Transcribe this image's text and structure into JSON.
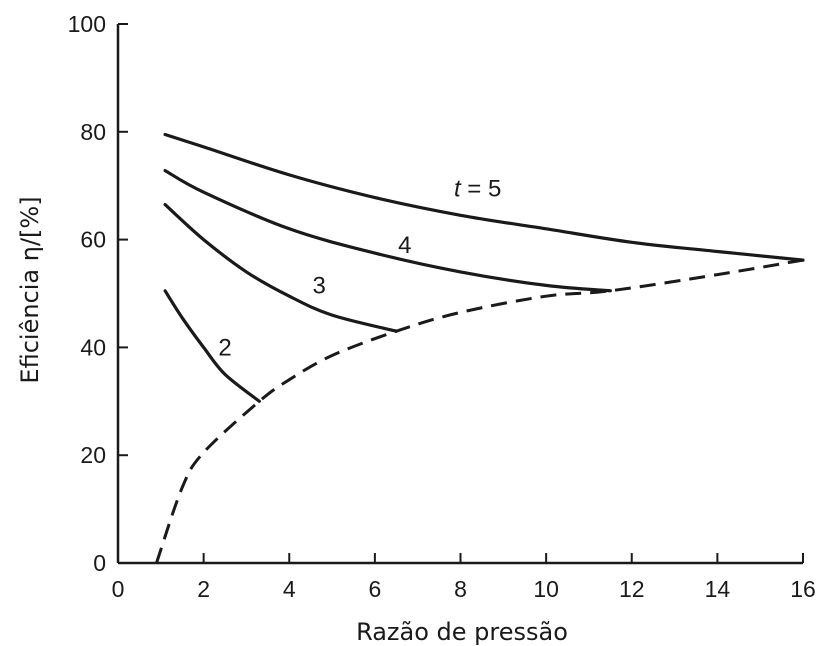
{
  "chart_data": {
    "type": "line",
    "xlabel": "Razão de pressão",
    "ylabel": "Eficiência  η/[%]",
    "xlim": [
      0,
      16
    ],
    "ylim": [
      0,
      100
    ],
    "x_ticks": [
      0,
      2,
      4,
      6,
      8,
      10,
      12,
      14,
      16
    ],
    "y_ticks": [
      0,
      20,
      40,
      60,
      80,
      100
    ],
    "grid": false,
    "series": [
      {
        "label": "t = 5",
        "style": "solid",
        "x": [
          1.1,
          2,
          4,
          6,
          8,
          10,
          12,
          14,
          16
        ],
        "y": [
          79.5,
          77.2,
          72,
          67.8,
          64.5,
          62,
          59.5,
          57.8,
          56.2
        ]
      },
      {
        "label": "4",
        "style": "solid",
        "x": [
          1.1,
          2,
          4,
          6,
          8,
          10,
          11.5
        ],
        "y": [
          72.8,
          68.8,
          62,
          57.5,
          54,
          51.5,
          50.5
        ]
      },
      {
        "label": "3",
        "style": "solid",
        "x": [
          1.1,
          2,
          3,
          4,
          5,
          6.5
        ],
        "y": [
          66.5,
          60,
          54,
          49.5,
          46,
          43
        ]
      },
      {
        "label": "2",
        "style": "solid",
        "x": [
          1.1,
          1.5,
          2,
          2.5,
          3.3
        ],
        "y": [
          50.5,
          45.5,
          40,
          35,
          30
        ]
      },
      {
        "label": "",
        "style": "dashed",
        "x": [
          0.9,
          1.5,
          2,
          3.3,
          4,
          5,
          6.5,
          8,
          10,
          11.5,
          14,
          16
        ],
        "y": [
          0,
          14,
          20.5,
          30,
          34,
          38.5,
          43,
          46.5,
          49.5,
          50.5,
          53.5,
          56.2
        ]
      }
    ]
  },
  "curve_labels": [
    {
      "text": "t = 5",
      "x": 8.4,
      "y": 68
    },
    {
      "text": "4",
      "x": 6.7,
      "y": 57.5
    },
    {
      "text": "3",
      "x": 4.7,
      "y": 50
    },
    {
      "text": "2",
      "x": 2.5,
      "y": 38.5
    }
  ],
  "colors": {
    "ink": "#1a1a1a",
    "background": "#ffffff"
  }
}
